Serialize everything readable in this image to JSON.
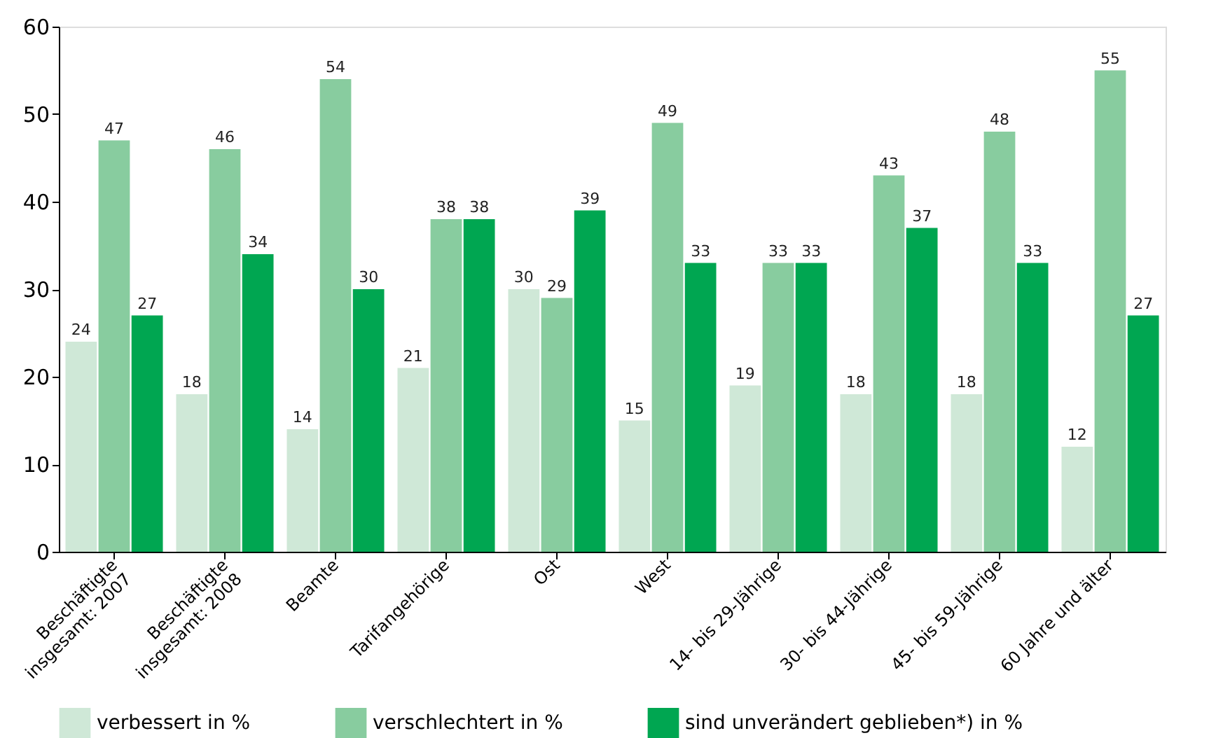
{
  "chart_data": {
    "type": "bar",
    "categories": [
      "Beschäftigte\ninsgesamt: 2007",
      "Beschäftigte\ninsgesamt: 2008",
      "Beamte",
      "Tarifangehörige",
      "Ost",
      "West",
      "14- bis 29-Jährige",
      "30- bis 44-Jährige",
      "45- bis 59-Jährige",
      "60 Jahre und älter"
    ],
    "series": [
      {
        "name": "verbessert in %",
        "color": "#cfe8d7",
        "values": [
          24,
          18,
          14,
          21,
          30,
          15,
          19,
          18,
          18,
          12
        ]
      },
      {
        "name": "verschlechtert in %",
        "color": "#88cc9f",
        "values": [
          47,
          46,
          54,
          38,
          29,
          49,
          33,
          43,
          48,
          55
        ]
      },
      {
        "name": "sind unverändert geblieben*) in %",
        "color": "#00a651",
        "values": [
          27,
          34,
          30,
          38,
          39,
          33,
          33,
          37,
          33,
          27
        ]
      }
    ],
    "ylim": [
      0,
      60
    ],
    "yticks": [
      0,
      10,
      20,
      30,
      40,
      50,
      60
    ],
    "data_labels": true,
    "grid": false,
    "legend": "bottom"
  }
}
